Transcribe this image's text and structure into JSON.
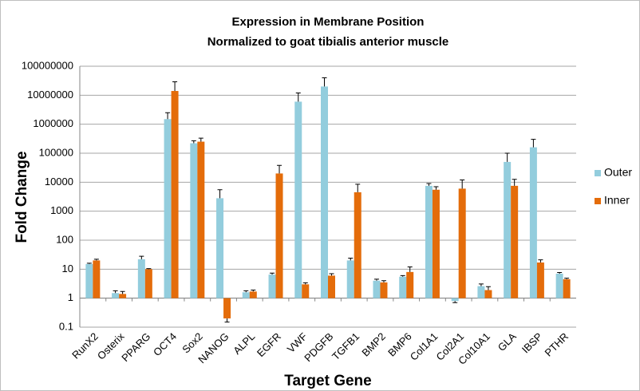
{
  "chart_data": {
    "type": "bar",
    "title": "Expression in Membrane Position",
    "subtitle": "Normalized to goat tibialis anterior muscle",
    "x_label": "Target Gene",
    "y_label": "Fold Change",
    "log_scale": true,
    "grid": true,
    "legend_position": "right",
    "categories": [
      "RunX2",
      "Osterix",
      "PPARG",
      "OCT4",
      "Sox2",
      "NANOG",
      "ALPL",
      "EGFR",
      "VWF",
      "PDGFB",
      "TGFB1",
      "BMP2",
      "BMP6",
      "Col1A1",
      "Col2A1",
      "Col10A1",
      "GLA",
      "IBSP",
      "PTHR"
    ],
    "series": [
      {
        "name": "Outer",
        "color": "#93cddd",
        "values": [
          15,
          1.5,
          22,
          1500000,
          220000,
          2800,
          1.6,
          6.5,
          6000000,
          20000000,
          20,
          4,
          5.5,
          7500,
          0.8,
          2.6,
          50000,
          160000,
          7
        ],
        "errors": [
          1,
          0.3,
          6,
          1000000,
          50000,
          2700,
          0.2,
          0.8,
          6000000,
          20000000,
          4,
          0.5,
          0.5,
          1500,
          0.1,
          0.5,
          50000,
          140000,
          0.7
        ]
      },
      {
        "name": "Inner",
        "color": "#e46c0a",
        "values": [
          20,
          1.4,
          10,
          14000000,
          250000,
          0.2,
          1.7,
          20000,
          3,
          6,
          4500,
          3.5,
          8,
          5500,
          6000,
          1.9,
          7500,
          17,
          4.5
        ],
        "errors": [
          2,
          0.3,
          0.5,
          15000000,
          80000,
          0.05,
          0.2,
          18000,
          0.4,
          1,
          4000,
          0.5,
          4,
          1500,
          6000,
          0.6,
          5000,
          4,
          0.4
        ]
      }
    ],
    "ylim": [
      0.1,
      100000000
    ],
    "yticks": [
      0.1,
      1,
      10,
      100,
      1000,
      10000,
      100000,
      1000000,
      10000000,
      100000000
    ]
  }
}
